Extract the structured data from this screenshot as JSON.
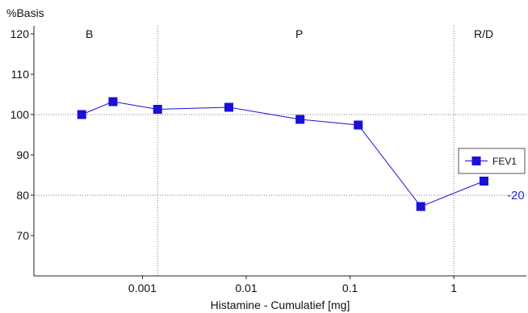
{
  "chart_data": {
    "type": "line",
    "ylabel": "%Basis",
    "xlabel": "Histamine - Cumulatief [mg]",
    "x_scale": "log",
    "ylim": [
      60,
      122
    ],
    "xlim": [
      9e-05,
      5
    ],
    "y_ticks": [
      70,
      80,
      90,
      100,
      110,
      120
    ],
    "x_ticks": [
      0.001,
      0.01,
      0.1,
      1
    ],
    "x_tick_labels": [
      "0.001",
      "0.01",
      "0.1",
      "1"
    ],
    "phases": [
      {
        "label": "B",
        "from": 9e-05,
        "to": 0.0014
      },
      {
        "label": "P",
        "from": 0.0014,
        "to": 1.0
      },
      {
        "label": "R/D",
        "from": 1.0,
        "to": 5
      }
    ],
    "reference_line": {
      "y": 80,
      "label": "-20",
      "color": "#2a2acc"
    },
    "baseline_gridline": 100,
    "series": [
      {
        "name": "FEV1",
        "color": "#1a10d8",
        "points": [
          {
            "x": 0.00026,
            "y": 100
          },
          {
            "x": 0.00052,
            "y": 103.2
          },
          {
            "x": 0.0014,
            "y": 101.3
          },
          {
            "x": 0.0068,
            "y": 101.8
          },
          {
            "x": 0.033,
            "y": 98.8
          },
          {
            "x": 0.12,
            "y": 97.4
          },
          {
            "x": 0.48,
            "y": 77.2
          },
          {
            "x": 1.95,
            "y": 83.5
          }
        ]
      }
    ],
    "legend": {
      "position": "right",
      "entries": [
        "FEV1"
      ]
    }
  }
}
